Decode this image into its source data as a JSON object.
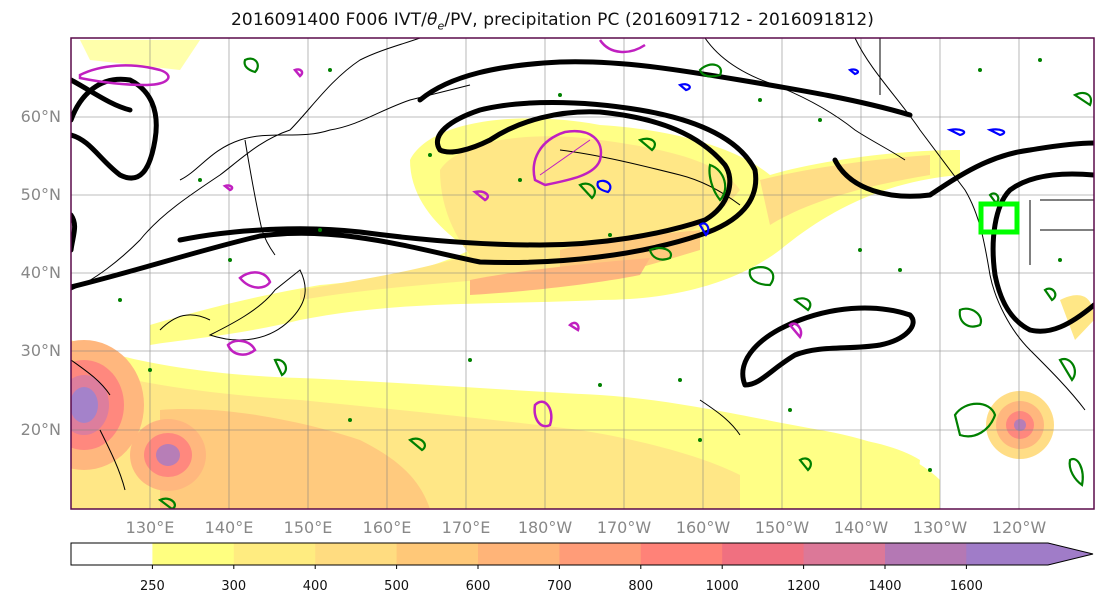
{
  "map": {
    "title_main": "2016091400 F006 IVT/",
    "title_theta": "θ",
    "title_sub": "e",
    "title_rest": "/PV, precipitation PC (2016091712 - 2016091812)",
    "lat_labels": [
      "60°N",
      "50°N",
      "40°N",
      "30°N",
      "20°N"
    ],
    "lon_labels": [
      "130°E",
      "140°E",
      "150°E",
      "160°E",
      "170°E",
      "180°W",
      "170°W",
      "160°W",
      "150°W",
      "140°W",
      "130°W",
      "120°W"
    ],
    "colors": {
      "ivt_pale_yellow": "#ffff80",
      "ivt_yellow": "#ffe680",
      "ivt_orange": "#ffb26b",
      "ivt_red": "#ff7a6b",
      "ivt_purple": "#9c6fc7",
      "pv_contour": "#000000",
      "theta_contour": "#c020c0",
      "precip_green": "#008000",
      "precip_blue": "#0000ff",
      "target_box": "#00ff00"
    }
  },
  "colorbar": {
    "tick_labels": [
      "250",
      "300",
      "400",
      "500",
      "600",
      "700",
      "800",
      "1000",
      "1200",
      "1400",
      "1600"
    ],
    "colors": [
      "#ffffff",
      "#ffff80",
      "#ffec80",
      "#ffdc80",
      "#ffc878",
      "#ffb478",
      "#ff9c78",
      "#ff8278",
      "#f07080",
      "#dc7898",
      "#b478b4",
      "#a07cc8"
    ]
  }
}
